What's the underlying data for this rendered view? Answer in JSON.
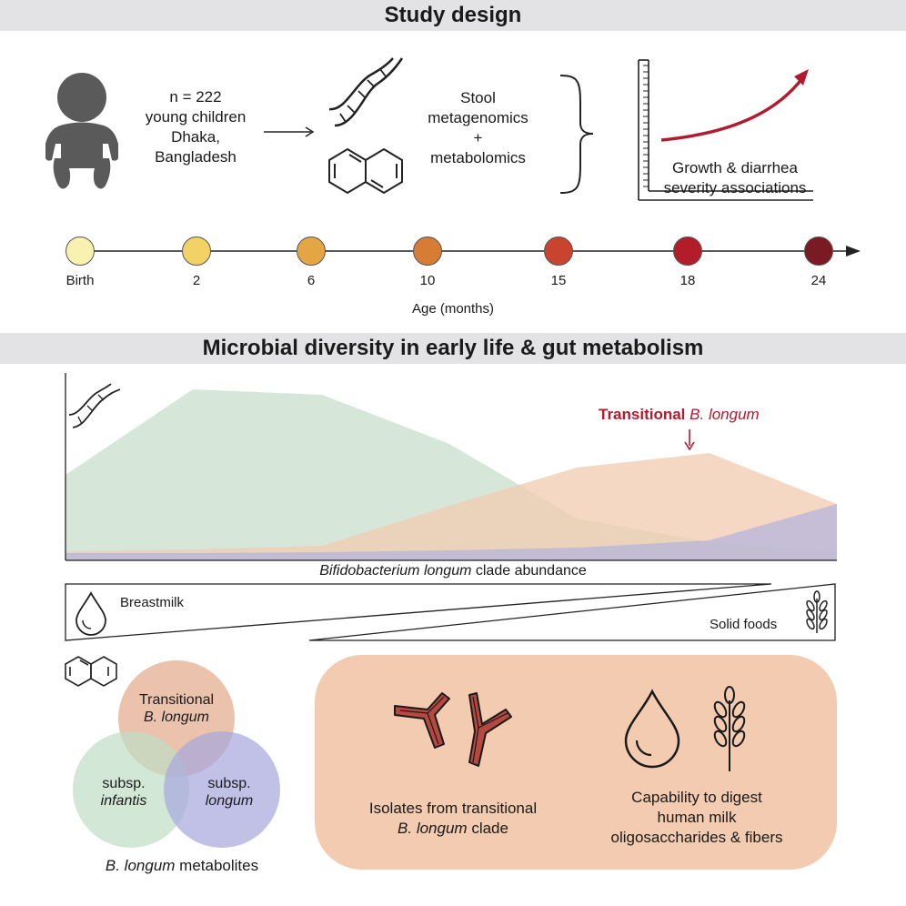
{
  "headers": {
    "study_design": "Study design",
    "diversity": "Microbial diversity in early life & gut metabolism"
  },
  "cohort": {
    "line1": "n = 222",
    "line2": "young children",
    "line3": "Dhaka,",
    "line4": "Bangladesh"
  },
  "methods": {
    "line1": "Stool",
    "line2": "metagenomics",
    "line3": "+",
    "line4": "metabolomics"
  },
  "outcomes": {
    "line1": "Growth & diarrhea",
    "line2": "severity associations"
  },
  "timeline": {
    "axis_label": "Age (months)",
    "points": [
      {
        "label": "Birth",
        "color": "#f8f1b0"
      },
      {
        "label": "2",
        "color": "#f2d264"
      },
      {
        "label": "6",
        "color": "#e4a544"
      },
      {
        "label": "10",
        "color": "#d67c35"
      },
      {
        "label": "15",
        "color": "#c9432f"
      },
      {
        "label": "18",
        "color": "#b31d2a"
      },
      {
        "label": "24",
        "color": "#7a1b24"
      }
    ]
  },
  "abundance": {
    "annotation_bold": "Transitional",
    "annotation_italic": "B. longum",
    "xlabel_italic": "Bifidobacterium longum",
    "xlabel_rest": "clade abundance",
    "colors": {
      "infantis": "#cfe3d4",
      "transitional": "#f2cbb0",
      "longum": "#b5b5dc"
    }
  },
  "diet": {
    "breastmilk": "Breastmilk",
    "solid_foods": "Solid foods"
  },
  "venn": {
    "transitional_1": "Transitional",
    "transitional_2": "B. longum",
    "infantis_1": "subsp.",
    "infantis_2": "infantis",
    "longum_1": "subsp.",
    "longum_2": "longum",
    "caption_italic": "B. longum",
    "caption_rest": "metabolites",
    "colors": {
      "transitional": "#e3a98a",
      "infantis": "#bfddc3",
      "longum": "#a7a7dd"
    }
  },
  "panel": {
    "isolates_1": "Isolates from transitional",
    "isolates_2_italic": "B. longum",
    "isolates_2_rest": "clade",
    "capability_1": "Capability to digest",
    "capability_2": "human milk",
    "capability_3": "oligosaccharides & fibers",
    "bg_color": "#f2cbb0",
    "bacteria_color": "#b5483f"
  },
  "accent_color": "#b01b30"
}
